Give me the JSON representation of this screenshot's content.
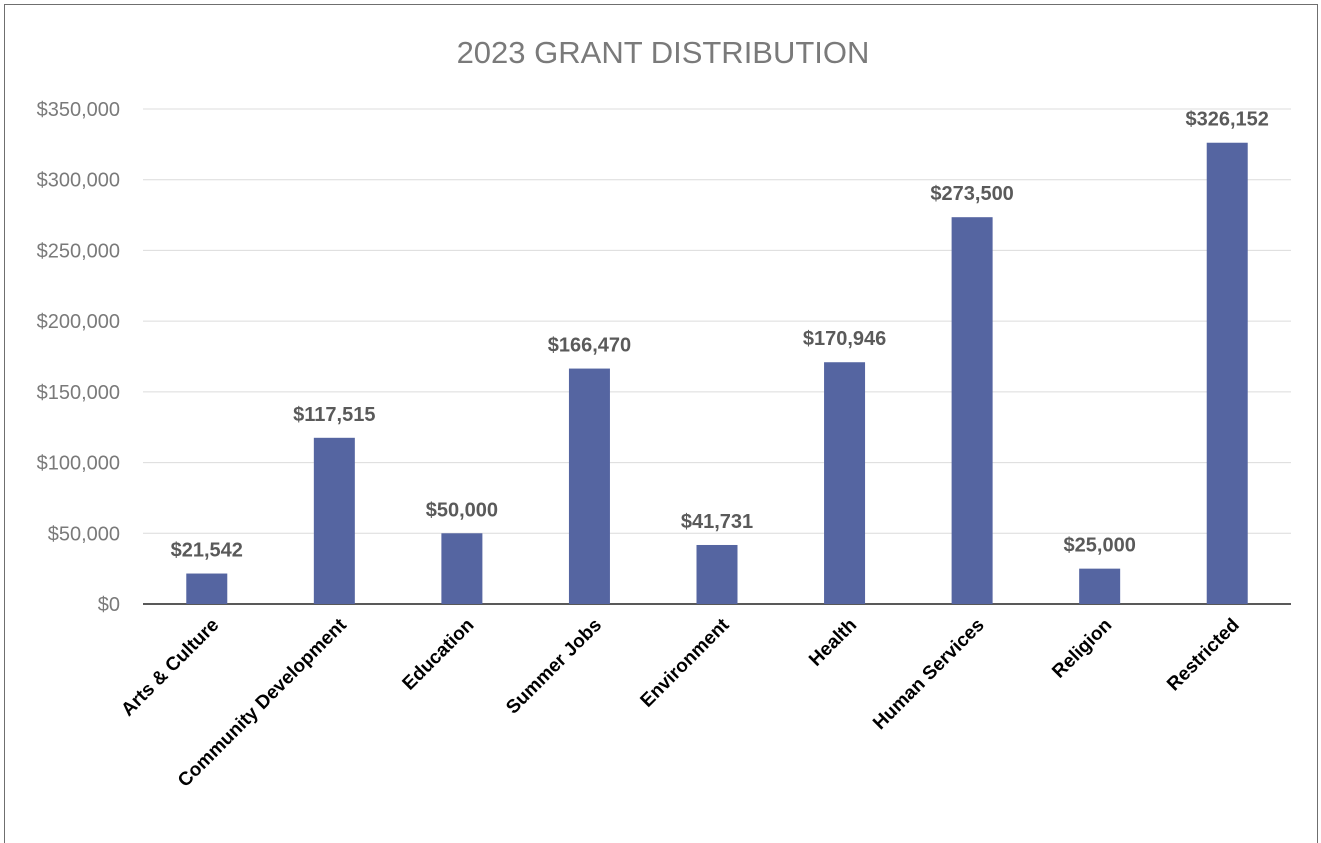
{
  "chart_data": {
    "type": "bar",
    "title": "2023 GRANT DISTRIBUTION",
    "categories": [
      "Arts & Culture",
      "Community Development",
      "Education",
      "Summer Jobs",
      "Environment",
      "Health",
      "Human Services",
      "Religion",
      "Restricted"
    ],
    "values": [
      21542,
      117515,
      50000,
      166470,
      41731,
      170946,
      273500,
      25000,
      326152
    ],
    "data_labels": [
      "$21,542",
      "$117,515",
      "$50,000",
      "$166,470",
      "$41,731",
      "$170,946",
      "$273,500",
      "$25,000",
      "$326,152"
    ],
    "yticks": [
      0,
      50000,
      100000,
      150000,
      200000,
      250000,
      300000,
      350000
    ],
    "ytick_labels": [
      "$0",
      "$50,000",
      "$100,000",
      "$150,000",
      "$200,000",
      "$250,000",
      "$300,000",
      "$350,000"
    ],
    "ylim": [
      0,
      350000
    ],
    "grid": true,
    "bar_color": "#5565a1",
    "xlabel": "",
    "ylabel": ""
  }
}
